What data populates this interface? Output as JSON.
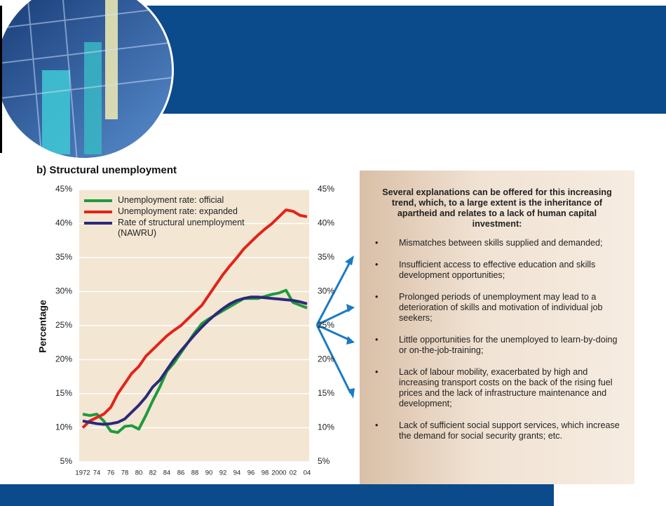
{
  "chart_data": {
    "type": "line",
    "title": "b) Structural unemployment",
    "y_label": "Percentage",
    "categories": [
      "1972",
      null,
      "74",
      null,
      "76",
      null,
      "78",
      null,
      "80",
      null,
      "82",
      null,
      "84",
      null,
      "86",
      null,
      "88",
      null,
      "90",
      null,
      "92",
      null,
      "94",
      null,
      "96",
      null,
      "98",
      null,
      "2000",
      null,
      "02",
      null,
      "04"
    ],
    "series": [
      {
        "name": "Unemployment rate: official",
        "color": "#1f9a3c",
        "values": [
          12,
          11.8,
          12,
          11,
          9.5,
          9.3,
          10.2,
          10.3,
          9.8,
          11.8,
          14,
          16,
          18.3,
          19.5,
          21,
          22.5,
          24,
          25.3,
          26,
          26.6,
          27.2,
          27.8,
          28.4,
          29,
          29,
          29,
          29.3,
          29.6,
          29.8,
          30.2,
          28.4,
          28,
          27.6
        ]
      },
      {
        "name": "Unemployment rate: expanded",
        "color": "#e2231a",
        "values": [
          10,
          11,
          11.5,
          12,
          13,
          15,
          16.5,
          18,
          19,
          20.5,
          21.5,
          22.5,
          23.5,
          24.3,
          25,
          26,
          27,
          28,
          29.5,
          31,
          32.5,
          33.8,
          35,
          36.3,
          37.3,
          38.3,
          39.2,
          40,
          41,
          42,
          41.8,
          41.2,
          41
        ]
      },
      {
        "name": "Rate of structural unemployment (NAWRU)",
        "color": "#2b2a7a",
        "values": [
          11,
          10.8,
          10.6,
          10.5,
          10.6,
          10.8,
          11.3,
          12.3,
          13.3,
          14.5,
          16,
          17,
          18.5,
          20,
          21.3,
          22.5,
          23.7,
          24.8,
          25.8,
          26.7,
          27.5,
          28.2,
          28.7,
          29,
          29.2,
          29.2,
          29.1,
          29,
          28.9,
          28.8,
          28.7,
          28.5,
          28.2
        ]
      }
    ],
    "ylim": [
      5,
      45
    ],
    "yticks": [
      {
        "value": 5,
        "label": "5%"
      },
      {
        "value": 10,
        "label": "10%"
      },
      {
        "value": 15,
        "label": "15%"
      },
      {
        "value": 20,
        "label": "20%"
      },
      {
        "value": 25,
        "label": "25%"
      },
      {
        "value": 30,
        "label": "30%"
      },
      {
        "value": 35,
        "label": "35%"
      },
      {
        "value": 40,
        "label": "40%"
      },
      {
        "value": 45,
        "label": "45%"
      }
    ],
    "y2lim": [
      5,
      45
    ],
    "y2ticks": [
      {
        "value": 5,
        "label": "5%"
      },
      {
        "value": 10,
        "label": "10%"
      },
      {
        "value": 15,
        "label": "15%"
      },
      {
        "value": 20,
        "label": "20%"
      },
      {
        "value": 25,
        "label": "25%"
      },
      {
        "value": 30,
        "label": "30%"
      },
      {
        "value": 35,
        "label": "35%"
      },
      {
        "value": 40,
        "label": "40%"
      },
      {
        "value": 45,
        "label": "45%"
      }
    ],
    "grid": true
  },
  "panel": {
    "heading": "Several explanations can be offered for this increasing trend, which, to a large extent is the inheritance of apartheid and relates to a lack of human capital investment:",
    "bullets": [
      "Mismatches between skills supplied and demanded;",
      "Insufficient access to effective education and skills development opportunities;",
      "Prolonged periods of unemployment may lead to a deterioration of skills and motivation of individual job seekers;",
      "Little opportunities for the unemployed to learn-by-doing or on-the-job-training;",
      "Lack of labour mobility, exacerbated by high and increasing transport costs on the back of the rising fuel prices and the lack of infrastructure maintenance and development;",
      "Lack of sufficient social support services, which increase the demand for social security grants; etc."
    ]
  }
}
